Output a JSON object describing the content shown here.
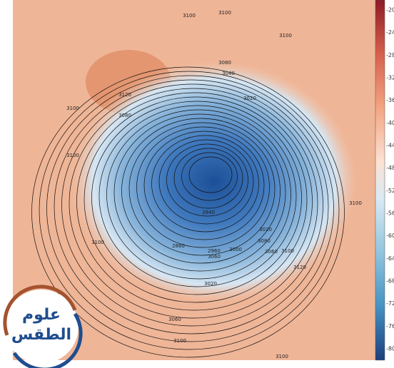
{
  "colorbar": {
    "labels": [
      -20,
      -24,
      -28,
      -32,
      -36,
      -40,
      -44,
      -48,
      -52,
      -56,
      -60,
      -64,
      -68,
      -72,
      -76,
      -80
    ]
  },
  "contour_labels": [
    3100,
    3100,
    3100,
    3100,
    3100,
    3100,
    3100,
    3100,
    3100,
    3100,
    3120,
    3120,
    3080,
    3080,
    3080,
    3060,
    3060,
    3060,
    3040,
    3020,
    3020,
    3020,
    3000,
    2840,
    2860,
    2960
  ],
  "logo": {
    "line1": "علوم",
    "line2": "الطقس"
  }
}
